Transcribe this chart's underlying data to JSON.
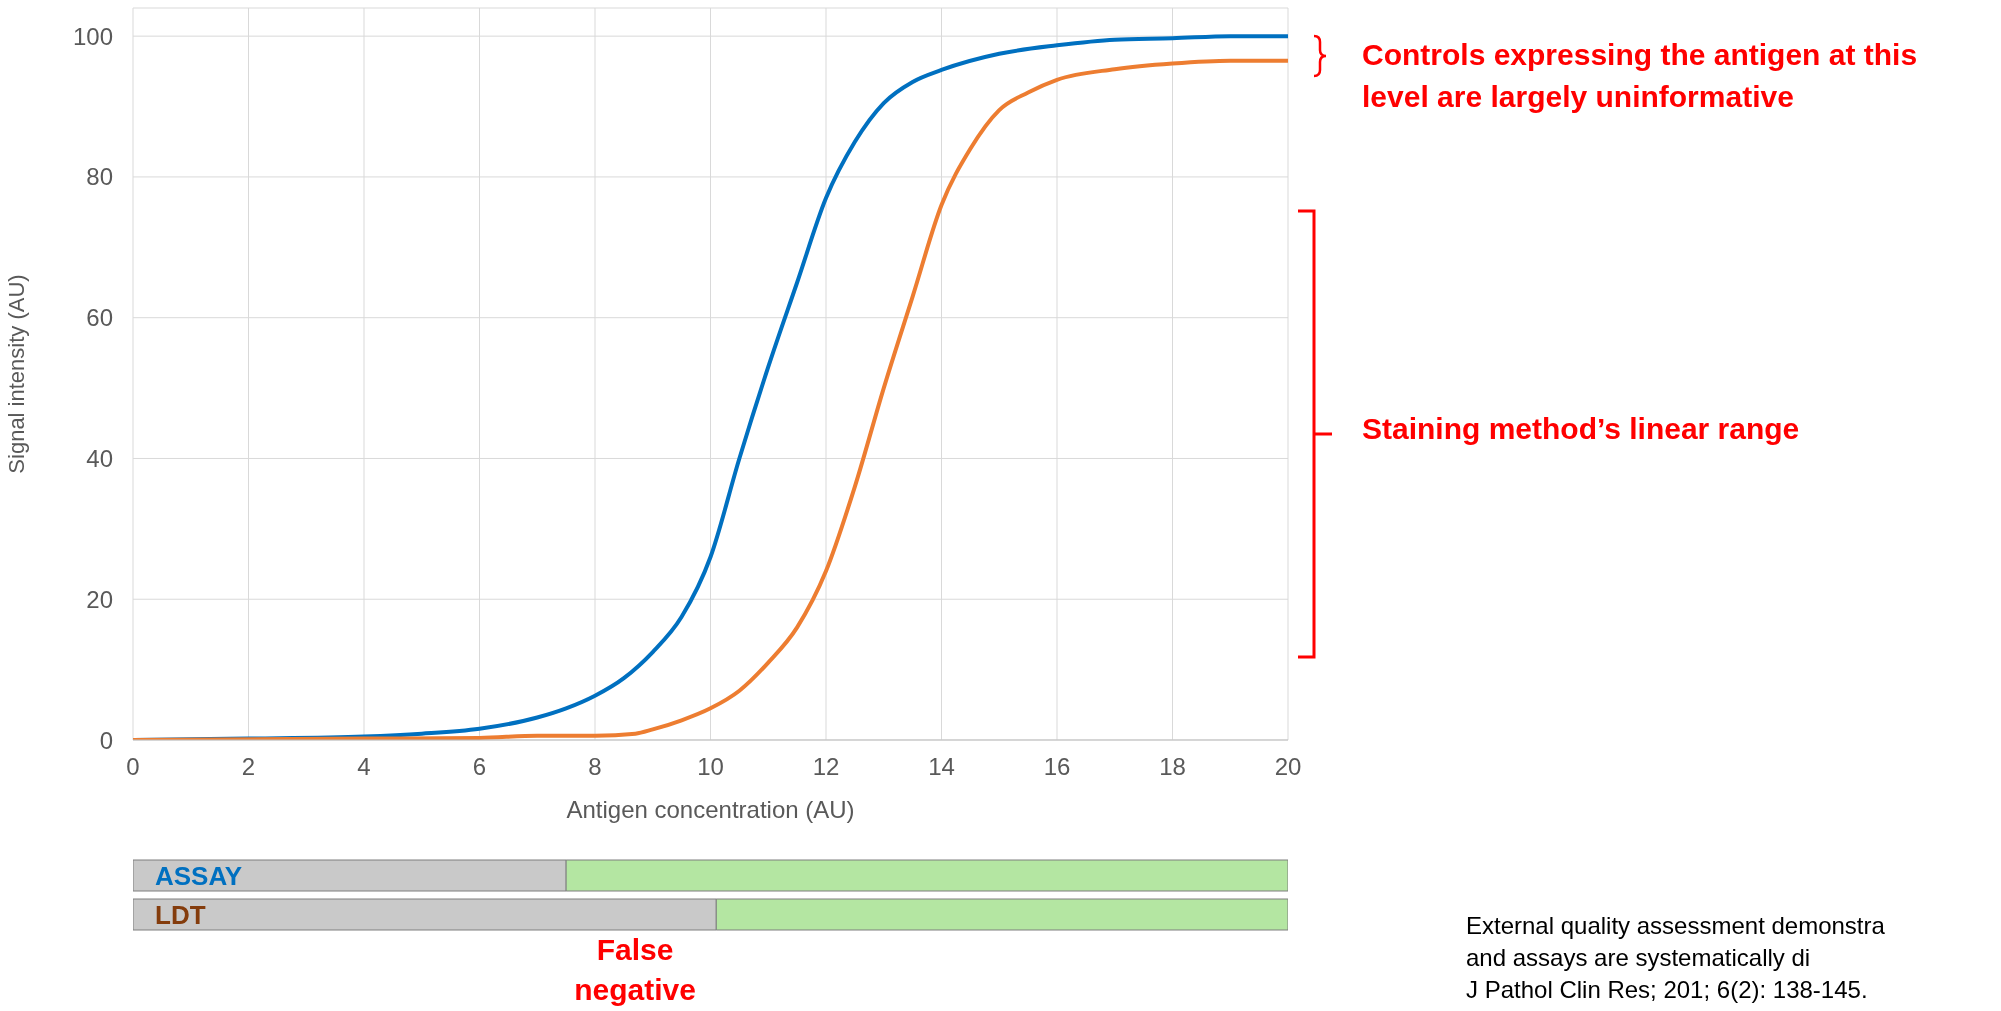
{
  "chart_data": [
    {
      "type": "line",
      "xlabel": "Antigen concentration (AU)",
      "ylabel": "Signal intensity (AU)",
      "xlim": [
        0,
        20
      ],
      "xticks": [
        0,
        2,
        4,
        6,
        8,
        10,
        12,
        14,
        16,
        18,
        20
      ],
      "ylim": [
        0,
        104
      ],
      "yticks": [
        0,
        20,
        40,
        60,
        80,
        100
      ],
      "grid": true,
      "line_style": "solid",
      "marker": "none",
      "annotations": [
        "Controls expressing the antigen at this level are largely uninformative",
        "Staining method’s linear range",
        "External quality assessment demonstra\nand assays are systematically di\nJ Pathol Clin Res; 201; 6(2): 138-145."
      ],
      "series": [
        {
          "color": "#0070c0",
          "x": [
            0,
            2,
            4,
            5,
            6,
            7,
            7.5,
            8,
            8.5,
            9,
            9.5,
            10,
            10.5,
            11,
            11.5,
            12,
            12.5,
            13,
            13.5,
            14,
            15,
            16,
            17,
            18,
            19,
            20
          ],
          "values": [
            0,
            0.2,
            0.5,
            0.9,
            1.6,
            3.2,
            4.5,
            6.3,
            8.8,
            12.5,
            17.5,
            26,
            40,
            53,
            65,
            77,
            85,
            90.5,
            93.5,
            95.2,
            97.5,
            98.7,
            99.5,
            99.7,
            100,
            100
          ]
        },
        {
          "color": "#ed7d31",
          "x": [
            0,
            4,
            6,
            7,
            8,
            8.7,
            9,
            9.5,
            10,
            10.5,
            11,
            11.5,
            12,
            12.5,
            13,
            13.5,
            14,
            14.5,
            15,
            15.5,
            16,
            17,
            18,
            19,
            20
          ],
          "values": [
            0,
            0.2,
            0.3,
            0.6,
            0.6,
            0.9,
            1.5,
            2.8,
            4.5,
            7,
            11,
            16,
            24,
            36,
            50,
            63,
            76,
            84,
            89.5,
            92,
            93.8,
            95.3,
            96.1,
            96.5,
            96.5
          ]
        }
      ]
    },
    {
      "type": "bar",
      "orientation": "horizontal",
      "stacked": true,
      "categories": [
        "ASSAY",
        "LDT"
      ],
      "xlim": [
        0,
        20
      ],
      "tick_labels": "y",
      "annotations": [
        "False negative"
      ],
      "series": [
        {
          "color": "#c9c9c9",
          "values": [
            7.5,
            10.1
          ]
        },
        {
          "color": "#b4e6a2",
          "values": [
            12.5,
            9.9
          ]
        }
      ]
    }
  ]
}
